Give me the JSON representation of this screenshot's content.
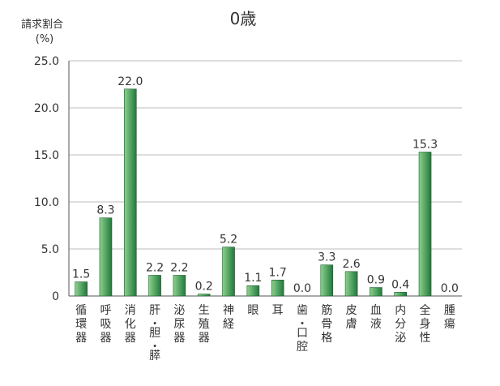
{
  "chart_data": {
    "type": "bar",
    "title": "0歳",
    "ylabel": "請求割合",
    "yunit": "(%)",
    "categories": [
      "循環器",
      "呼吸器",
      "消化器",
      "肝・胆・膵",
      "泌尿器",
      "生殖器",
      "神経",
      "眼",
      "耳",
      "歯・口腔",
      "筋骨格",
      "皮膚",
      "血液",
      "内分泌",
      "全身性",
      "腫瘍"
    ],
    "category_labels": [
      [
        "循",
        "環",
        "器"
      ],
      [
        "呼",
        "吸",
        "器"
      ],
      [
        "消",
        "化",
        "器"
      ],
      [
        "肝",
        "・",
        "胆",
        "・",
        "膵"
      ],
      [
        "泌",
        "尿",
        "器"
      ],
      [
        "生",
        "殖",
        "器"
      ],
      [
        "神",
        "経"
      ],
      [
        "眼"
      ],
      [
        "耳"
      ],
      [
        "歯",
        "・",
        "口",
        "腔"
      ],
      [
        "筋",
        "骨",
        "格"
      ],
      [
        "皮",
        "膚"
      ],
      [
        "血",
        "液"
      ],
      [
        "内",
        "分",
        "泌"
      ],
      [
        "全",
        "身",
        "性"
      ],
      [
        "腫",
        "瘍"
      ]
    ],
    "values": [
      1.5,
      8.3,
      22.0,
      2.2,
      2.2,
      0.2,
      5.2,
      1.1,
      1.7,
      0.0,
      3.3,
      2.6,
      0.9,
      0.4,
      15.3,
      0.0
    ],
    "value_labels": [
      "1.5",
      "8.3",
      "22.0",
      "2.2",
      "2.2",
      "0.2",
      "5.2",
      "1.1",
      "1.7",
      "0.0",
      "3.3",
      "2.6",
      "0.9",
      "0.4",
      "15.3",
      "0.0"
    ],
    "yticks": [
      0,
      5,
      10,
      15,
      20,
      25
    ],
    "ytick_labels": [
      "0",
      "5.0",
      "10.0",
      "15.0",
      "20.0",
      "25.0"
    ],
    "ylim": [
      0,
      25
    ],
    "grid": true,
    "bar_color_light": "#8fd08f",
    "bar_color_dark": "#1f7a3a",
    "grid_color": "#bdbdbd"
  }
}
